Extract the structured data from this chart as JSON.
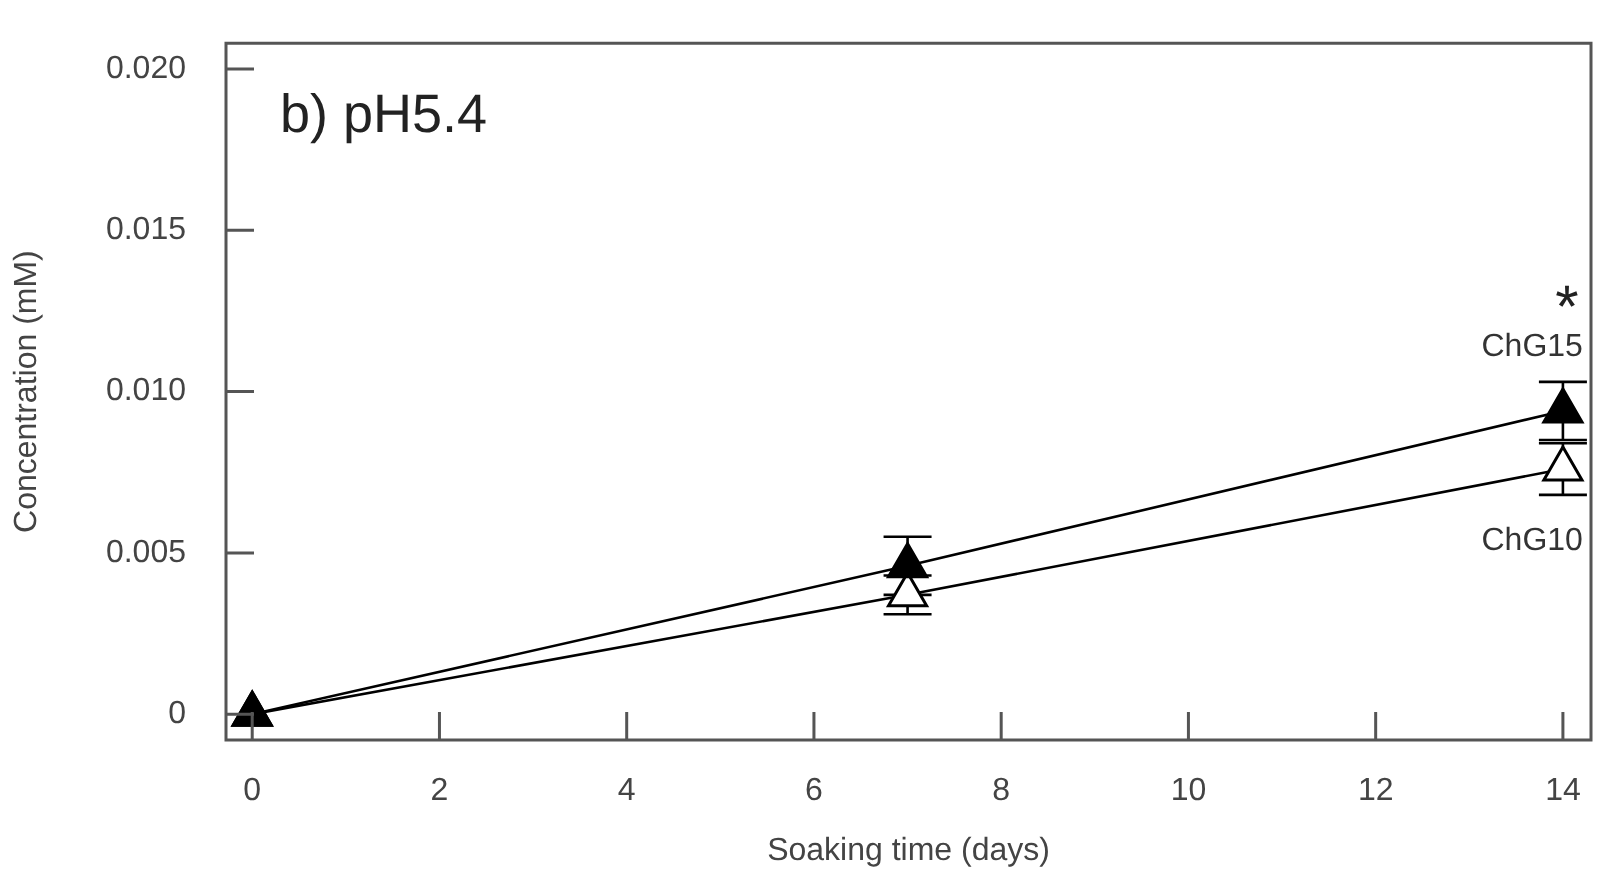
{
  "chart_data": {
    "type": "line",
    "xlabel": "Soaking time (days)",
    "ylabel": "Concentration (mM)",
    "x": [
      0,
      7,
      14
    ],
    "series": [
      {
        "name": "ChG15",
        "color": "#000000",
        "values": [
          0,
          0.0046,
          0.0094
        ],
        "errors": [
          null,
          0.0009,
          0.0009
        ]
      },
      {
        "name": "ChG10",
        "color": "#000000",
        "values": [
          0,
          0.0037,
          0.0076
        ],
        "errors": [
          null,
          0.0006,
          0.0008
        ]
      }
    ],
    "xlim": [
      -0.28,
      14.3
    ],
    "xticks": [
      0,
      2,
      4,
      6,
      8,
      10,
      12,
      14
    ],
    "ylim": [
      -0.0008,
      0.0208
    ],
    "yticks": [
      {
        "value": 0,
        "label": "0"
      },
      {
        "value": 0.005,
        "label": "0.005"
      },
      {
        "value": 0.01,
        "label": "0.010"
      },
      {
        "value": 0.015,
        "label": "0.015"
      },
      {
        "value": 0.02,
        "label": "0.020"
      }
    ],
    "annotations": [
      "b) pH5.4",
      "*"
    ],
    "grid": false,
    "legend": false,
    "marker": "triangle",
    "line_style": "solid"
  }
}
